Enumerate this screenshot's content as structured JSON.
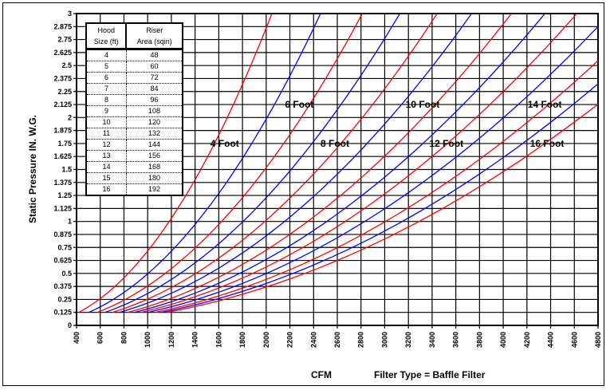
{
  "chart_data": {
    "type": "line",
    "xlabel": "CFM",
    "ylabel": "Static Pressure IN. W.G.",
    "subtitle": "Filter Type = Baffle Filter",
    "xlim": [
      400,
      4800
    ],
    "ylim": [
      0,
      3
    ],
    "x_ticks": [
      400,
      600,
      800,
      1000,
      1200,
      1400,
      1600,
      1800,
      2000,
      2200,
      2400,
      2600,
      2800,
      3000,
      3200,
      3400,
      3600,
      3800,
      4000,
      4200,
      4400,
      4600,
      4800
    ],
    "y_ticks": [
      "0",
      "0.125",
      "0.25",
      "0.375",
      "0.5",
      "0.625",
      "0.75",
      "0.875",
      "1",
      "1.125",
      "1.25",
      "1.375",
      "1.5",
      "1.625",
      "1.75",
      "1.875",
      "2",
      "2.125",
      "2.25",
      "2.375",
      "2.5",
      "2.625",
      "2.75",
      "2.875",
      "3"
    ],
    "grid": true,
    "series": [
      {
        "name": "4 Foot",
        "color": "#ff0000",
        "points": [
          [
            418,
            0.125
          ],
          [
            836,
            0.5
          ],
          [
            1254,
            1.125
          ],
          [
            1672,
            2
          ],
          [
            2048,
            3
          ]
        ]
      },
      {
        "color": "#0000ff",
        "points": [
          [
            502,
            0.125
          ],
          [
            1004,
            0.5
          ],
          [
            1506,
            1.125
          ],
          [
            2008,
            2
          ],
          [
            2459,
            3
          ]
        ]
      },
      {
        "name": "6 Foot",
        "color": "#ff0000",
        "points": [
          [
            574,
            0.125
          ],
          [
            1148,
            0.5
          ],
          [
            1722,
            1.125
          ],
          [
            2296,
            2
          ],
          [
            2811,
            3
          ]
        ]
      },
      {
        "color": "#0000ff",
        "points": [
          [
            638,
            0.125
          ],
          [
            1276,
            0.5
          ],
          [
            1914,
            1.125
          ],
          [
            2552,
            2
          ],
          [
            3128,
            3
          ]
        ]
      },
      {
        "name": "8 Foot",
        "color": "#ff0000",
        "points": [
          [
            703,
            0.125
          ],
          [
            1406,
            0.5
          ],
          [
            2109,
            1.125
          ],
          [
            2812,
            2
          ],
          [
            3443,
            3
          ]
        ]
      },
      {
        "color": "#0000ff",
        "points": [
          [
            762,
            0.125
          ],
          [
            1524,
            0.5
          ],
          [
            2286,
            1.125
          ],
          [
            3048,
            2
          ],
          [
            3733,
            3
          ]
        ]
      },
      {
        "name": "10 Foot",
        "color": "#ff0000",
        "points": [
          [
            831,
            0.125
          ],
          [
            1662,
            0.5
          ],
          [
            2493,
            1.125
          ],
          [
            3324,
            2
          ],
          [
            4069,
            3
          ]
        ]
      },
      {
        "color": "#0000ff",
        "points": [
          [
            888,
            0.125
          ],
          [
            1776,
            0.5
          ],
          [
            2664,
            1.125
          ],
          [
            3552,
            2
          ],
          [
            4352,
            3
          ]
        ]
      },
      {
        "name": "12 Foot",
        "color": "#ff0000",
        "points": [
          [
            943,
            0.125
          ],
          [
            1886,
            0.5
          ],
          [
            2829,
            1.125
          ],
          [
            3772,
            2
          ],
          [
            4621,
            3
          ]
        ]
      },
      {
        "color": "#0000ff",
        "points": [
          [
            1001,
            0.125
          ],
          [
            2002,
            0.5
          ],
          [
            3003,
            1.125
          ],
          [
            4004,
            2
          ],
          [
            4800,
            2.875
          ]
        ]
      },
      {
        "name": "14 Foot",
        "color": "#ff0000",
        "points": [
          [
            1063,
            0.125
          ],
          [
            2126,
            0.5
          ],
          [
            3189,
            1.125
          ],
          [
            4252,
            2
          ],
          [
            4800,
            2.547
          ]
        ]
      },
      {
        "color": "#0000ff",
        "points": [
          [
            1113,
            0.125
          ],
          [
            2226,
            0.5
          ],
          [
            3339,
            1.125
          ],
          [
            4452,
            2
          ],
          [
            4800,
            2.325
          ]
        ]
      },
      {
        "name": "16 Foot",
        "color": "#ff0000",
        "points": [
          [
            1163,
            0.125
          ],
          [
            2326,
            0.5
          ],
          [
            3489,
            1.125
          ],
          [
            4652,
            2
          ],
          [
            4800,
            2.128
          ]
        ]
      }
    ],
    "annotations": [
      {
        "text": "4 Foot",
        "x": 1650,
        "y": 1.75
      },
      {
        "text": "6 Foot",
        "x": 2280,
        "y": 2.125
      },
      {
        "text": "8 Foot",
        "x": 2580,
        "y": 1.75
      },
      {
        "text": "10 Foot",
        "x": 3320,
        "y": 2.125
      },
      {
        "text": "12 Foot",
        "x": 3520,
        "y": 1.75
      },
      {
        "text": "14 Foot",
        "x": 4350,
        "y": 2.125
      },
      {
        "text": "16 Foot",
        "x": 4370,
        "y": 1.75
      }
    ],
    "table": {
      "headers": [
        [
          "Hood",
          "Size (ft)"
        ],
        [
          "Riser",
          "Area (sqin)"
        ]
      ],
      "rows": [
        [
          "4",
          "48"
        ],
        [
          "5",
          "60"
        ],
        [
          "6",
          "72"
        ],
        [
          "7",
          "84"
        ],
        [
          "8",
          "96"
        ],
        [
          "9",
          "108"
        ],
        [
          "10",
          "120"
        ],
        [
          "11",
          "132"
        ],
        [
          "12",
          "144"
        ],
        [
          "13",
          "156"
        ],
        [
          "14",
          "168"
        ],
        [
          "15",
          "180"
        ],
        [
          "16",
          "192"
        ]
      ]
    }
  }
}
